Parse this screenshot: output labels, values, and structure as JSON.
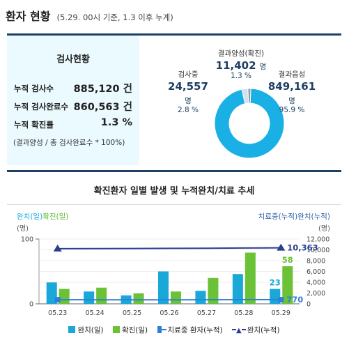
{
  "header": {
    "title": "환자 현황",
    "subtitle": "(5.29. 00시 기준, 1.3 이후 누계)"
  },
  "summary": {
    "title": "검사현황",
    "rows": [
      {
        "label": "누적 검사수",
        "value": "885,120 건"
      },
      {
        "label": "누적 검사완료수",
        "value": "860,563 건"
      },
      {
        "label": "누적 확진률",
        "value": "1.3 %"
      }
    ],
    "note": "(결과양성 / 총 검사완료수 * 100%)"
  },
  "donut": {
    "testing": {
      "label": "검사중",
      "value": "24,557",
      "unit": "명",
      "pct": "2.8 %"
    },
    "positive": {
      "label": "결과양성(확진)",
      "value": "11,402",
      "unit": "명",
      "pct": "1.3 %"
    },
    "negative": {
      "label": "결과음성",
      "value": "849,161",
      "unit": "명",
      "pct": "95.9 %"
    },
    "colors": {
      "testing": "#cfe2ee",
      "positive": "#8c9aa8",
      "negative": "#1ab0e6"
    }
  },
  "chart_section": {
    "title": "확진환자 일별 발생 및 누적완치/치료 추세",
    "left_label_1": "완치(일)",
    "left_label_2": "확진(일)",
    "left_unit": "(명)",
    "right_label": "치료중(누적)완치(누적)",
    "right_unit": "(명)"
  },
  "chart_data": {
    "type": "bar",
    "categories": [
      "05.23",
      "05.24",
      "05.25",
      "05.26",
      "05.27",
      "05.28",
      "05.29"
    ],
    "series": [
      {
        "name": "완치(일)",
        "type": "bar",
        "axis": "left",
        "color": "#19a8d8",
        "values": [
          33,
          19,
          13,
          50,
          20,
          46,
          23
        ]
      },
      {
        "name": "확진(일)",
        "type": "bar",
        "axis": "left",
        "color": "#6cc236",
        "values": [
          23,
          25,
          16,
          19,
          40,
          79,
          58
        ]
      },
      {
        "name": "치료중 환자(누적)",
        "type": "line",
        "axis": "right",
        "color": "#2f7fd8",
        "values": [
          754,
          750,
          745,
          738,
          752,
          777,
          770
        ]
      },
      {
        "name": "완치(누적)",
        "type": "line",
        "axis": "right",
        "color": "#2a3f8f",
        "values": [
          10213,
          10226,
          10240,
          10275,
          10295,
          10340,
          10363
        ]
      }
    ],
    "left_axis": {
      "ticks": [
        "0",
        "100"
      ],
      "ylim": [
        0,
        100
      ]
    },
    "right_axis": {
      "ticks": [
        "0",
        "2,000",
        "4,000",
        "6,000",
        "8,000",
        "10,000",
        "12,000"
      ],
      "ylim": [
        0,
        12000
      ]
    },
    "last_labels": {
      "recovered_daily": "23",
      "confirmed_daily": "58",
      "in_treatment": "770",
      "recovered_cum": "10,363"
    },
    "legend": [
      "완치(일)",
      "확진(일)",
      "치료중 환자(누적)",
      "완치(누적)"
    ]
  }
}
